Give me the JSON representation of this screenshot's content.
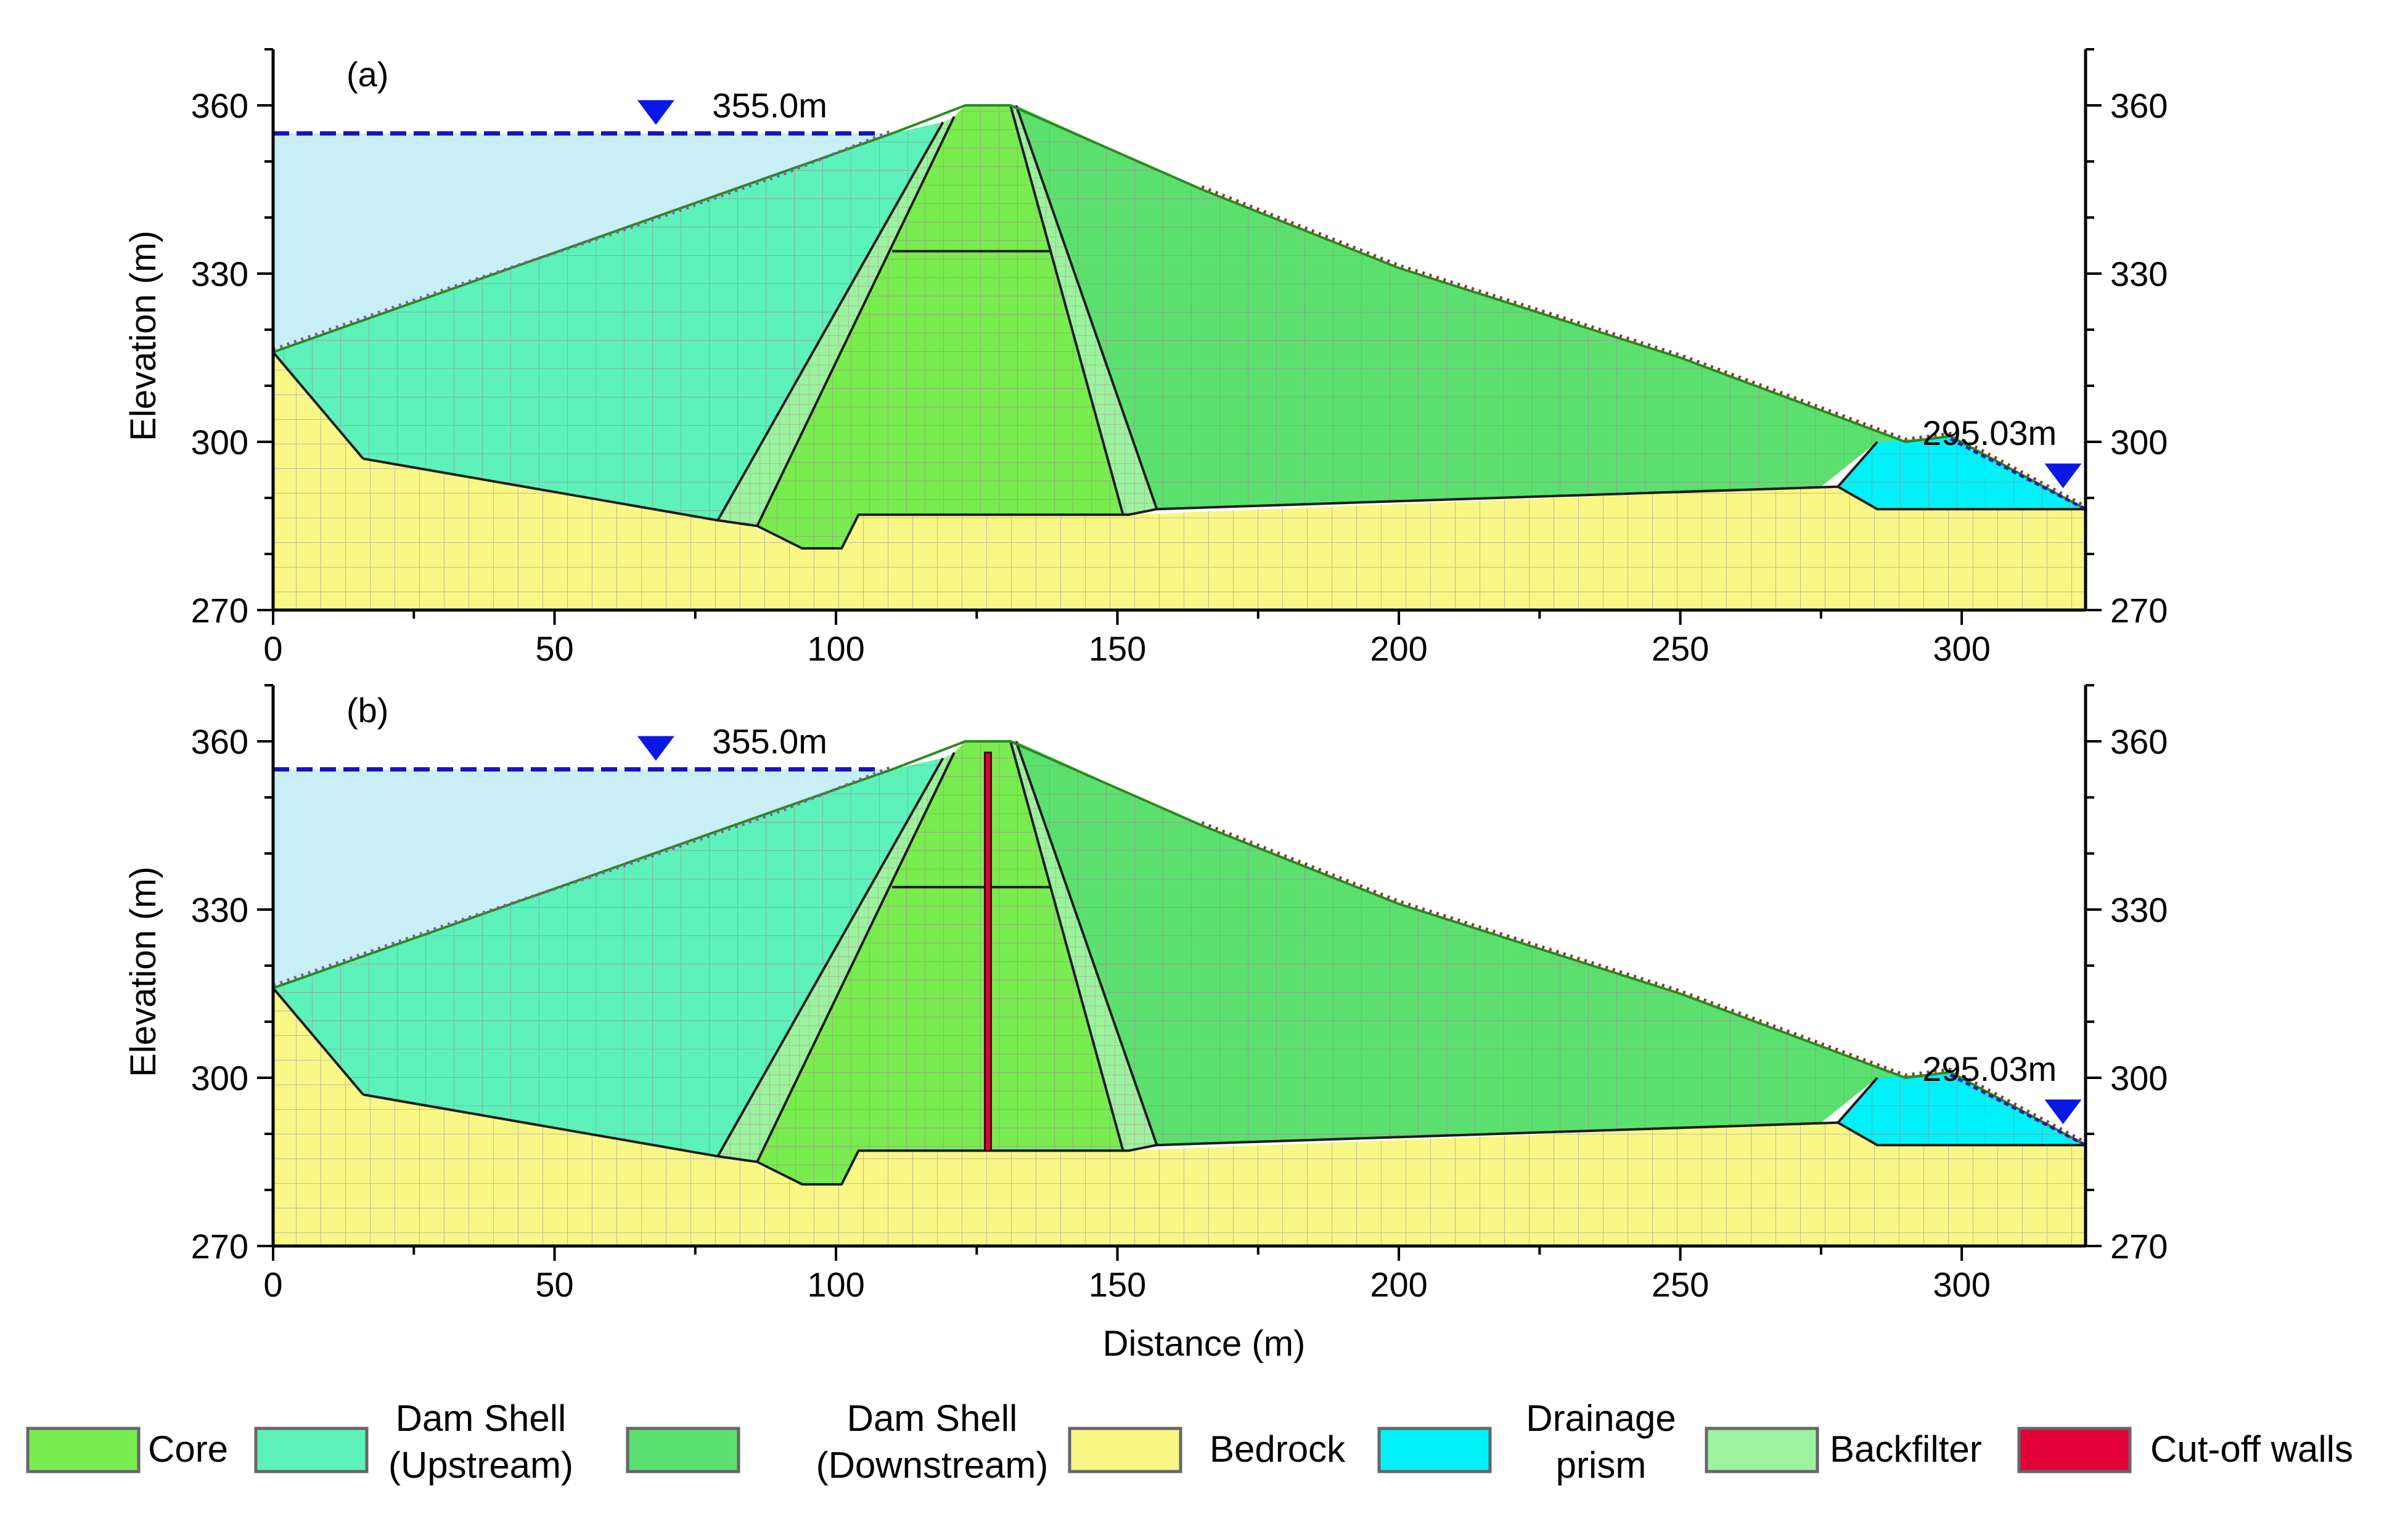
{
  "figure": {
    "x_axis_label": "Distance (m)",
    "y_axis_label": "Elevation (m)",
    "x_ticks": [
      0,
      50,
      100,
      150,
      200,
      250,
      300
    ],
    "y_ticks": [
      270,
      300,
      330,
      360
    ],
    "x_range": [
      0,
      322
    ],
    "y_range": [
      270,
      370
    ]
  },
  "panels": [
    {
      "label": "(a)",
      "upstream_level": 355.0,
      "upstream_level_text": "355.0m",
      "downstream_level": 295.03,
      "downstream_level_text": "295.03m",
      "has_cutoff_wall": false
    },
    {
      "label": "(b)",
      "upstream_level": 355.0,
      "upstream_level_text": "355.0m",
      "downstream_level": 295.03,
      "downstream_level_text": "295.03m",
      "has_cutoff_wall": true
    }
  ],
  "geometry": {
    "bedrock_top": [
      [
        0,
        316
      ],
      [
        16,
        297
      ],
      [
        85,
        285
      ],
      [
        94,
        281
      ],
      [
        101,
        281
      ],
      [
        104,
        287
      ],
      [
        152,
        287
      ],
      [
        278,
        292
      ],
      [
        285,
        288
      ],
      [
        322,
        288
      ]
    ],
    "upstream_shell": [
      [
        0,
        316
      ],
      [
        16,
        297
      ],
      [
        79,
        286
      ],
      [
        119,
        357
      ],
      [
        110,
        355
      ],
      [
        0,
        316
      ]
    ],
    "upstream_filter": [
      [
        79,
        286
      ],
      [
        86,
        285
      ],
      [
        121,
        358
      ],
      [
        119,
        357
      ]
    ],
    "core": [
      [
        86,
        285
      ],
      [
        94,
        281
      ],
      [
        101,
        281
      ],
      [
        104,
        287
      ],
      [
        151,
        287
      ],
      [
        131,
        360
      ],
      [
        123,
        360
      ],
      [
        121,
        358
      ]
    ],
    "downstream_filter": [
      [
        151,
        287
      ],
      [
        157,
        288
      ],
      [
        132,
        360
      ],
      [
        131,
        360
      ]
    ],
    "downstream_shell": [
      [
        132,
        360
      ],
      [
        165,
        345
      ],
      [
        200,
        331
      ],
      [
        250,
        315
      ],
      [
        290,
        300
      ],
      [
        285,
        300
      ],
      [
        275,
        292
      ],
      [
        157,
        288
      ]
    ],
    "drainage_prism": [
      [
        285,
        300
      ],
      [
        298,
        301
      ],
      [
        322,
        288
      ],
      [
        285,
        288
      ],
      [
        278,
        292
      ]
    ],
    "core_berm_elevation": 334,
    "core_berm_x": [
      110,
      138
    ],
    "cutoff_wall_x": 127,
    "cutoff_wall_range": [
      287,
      358
    ]
  },
  "colors": {
    "core": "#79ec4f",
    "shell_upstream": "#5cf2b9",
    "shell_downstream": "#5be06f",
    "bedrock": "#f9f785",
    "drainage": "#00f2f9",
    "backfilter": "#9cf29e",
    "cutoff": "#e30038",
    "water": "#c8eef6",
    "water_line": "#1515bf",
    "triangle": "#0a18e6",
    "mesh": "#b0769d",
    "mesh_bedrock": "#a9a9a3"
  },
  "legend": [
    {
      "label": "Core",
      "color": "#79ec4f"
    },
    {
      "label": "Dam Shell",
      "label2": "(Upstream)",
      "color": "#5cf2b9"
    },
    {
      "label": "Dam Shell",
      "label2": "(Downstream)",
      "color": "#5be06f"
    },
    {
      "label": "Bedrock",
      "color": "#f9f785"
    },
    {
      "label": "Drainage",
      "label2": "prism",
      "color": "#00f2f9"
    },
    {
      "label": "Backfilter",
      "color": "#9cf29e"
    },
    {
      "label": "Cut-off walls",
      "color": "#e30038"
    }
  ]
}
